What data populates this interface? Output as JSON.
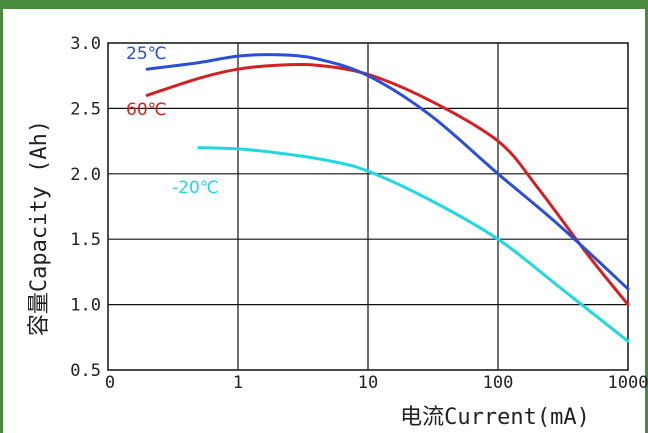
{
  "chart_data": {
    "type": "line",
    "xlabel": "电流Current(mA)",
    "ylabel": "容量Capacity (Ah)",
    "x_scale": "log",
    "x_ticks": [
      "0",
      "1",
      "10",
      "100",
      "1000"
    ],
    "y_ticks": [
      "0.5",
      "1.0",
      "1.5",
      "2.0",
      "2.5",
      "3.0"
    ],
    "ylim": [
      0.5,
      3.0
    ],
    "xlim": [
      0.1,
      1000
    ],
    "grid": true,
    "series": [
      {
        "name": "25℃",
        "color": "#2a4fd6",
        "x": [
          0.2,
          0.5,
          1,
          2,
          4,
          10,
          30,
          100,
          300,
          1000
        ],
        "y": [
          2.8,
          2.85,
          2.9,
          2.91,
          2.88,
          2.75,
          2.45,
          2.0,
          1.6,
          1.12
        ]
      },
      {
        "name": "60℃",
        "color": "#d42020",
        "x": [
          0.2,
          0.5,
          1,
          2,
          4,
          10,
          30,
          100,
          200,
          500,
          1000
        ],
        "y": [
          2.6,
          2.73,
          2.8,
          2.83,
          2.83,
          2.76,
          2.56,
          2.25,
          1.9,
          1.37,
          1.0
        ]
      },
      {
        "name": "-20℃",
        "color": "#20d8e0",
        "x": [
          0.5,
          1,
          2,
          5,
          10,
          30,
          100,
          300,
          1000
        ],
        "y": [
          2.2,
          2.19,
          2.16,
          2.1,
          2.02,
          1.8,
          1.5,
          1.13,
          0.72
        ]
      }
    ]
  }
}
